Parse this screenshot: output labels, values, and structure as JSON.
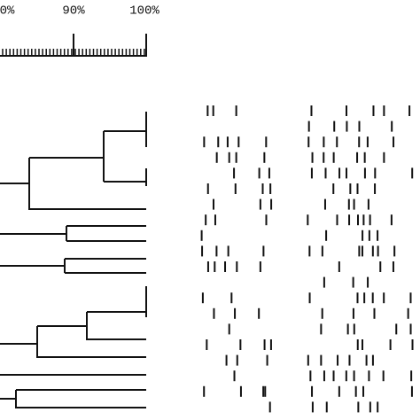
{
  "scale": {
    "labels": [
      "0%",
      "90%",
      "100%"
    ]
  }
}
